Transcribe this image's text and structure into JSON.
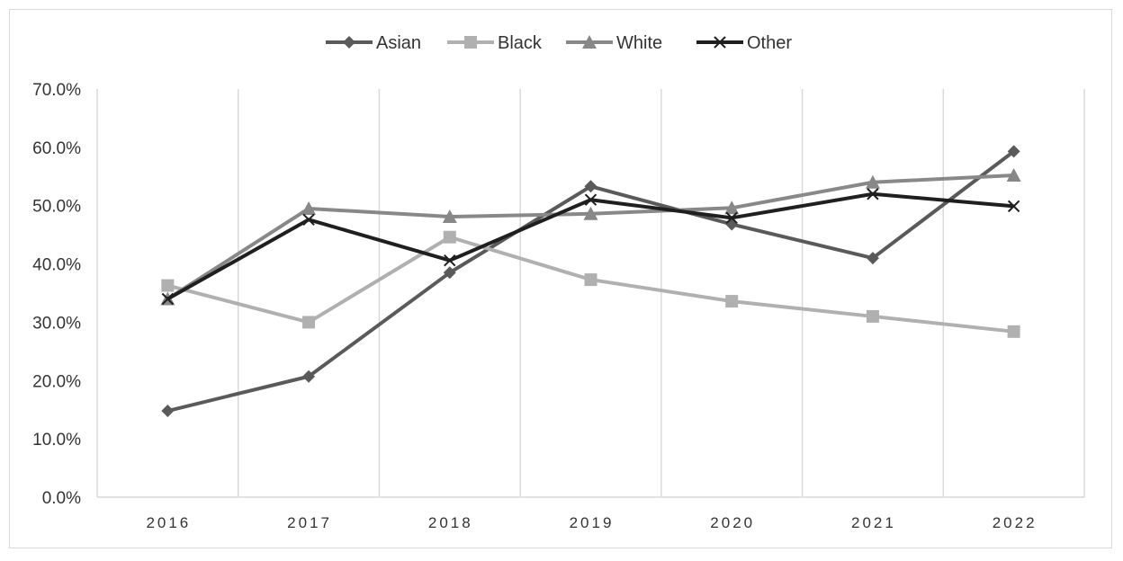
{
  "chart_data": {
    "type": "line",
    "title": "",
    "xlabel": "",
    "ylabel": "",
    "categories": [
      "2016",
      "2017",
      "2018",
      "2019",
      "2020",
      "2021",
      "2022"
    ],
    "ylim": [
      0,
      70
    ],
    "y_ticks": [
      "0.0%",
      "10.0%",
      "20.0%",
      "30.0%",
      "40.0%",
      "50.0%",
      "60.0%",
      "70.0%"
    ],
    "grid": "vertical",
    "legend_position": "top-center",
    "series": [
      {
        "name": "Asian",
        "marker": "diamond",
        "color": "#5a5a5a",
        "values": [
          14.8,
          20.7,
          38.5,
          53.3,
          46.8,
          41.0,
          59.3
        ]
      },
      {
        "name": "Black",
        "marker": "square",
        "color": "#b0b0b0",
        "values": [
          36.3,
          30.0,
          44.6,
          37.3,
          33.6,
          31.0,
          28.4
        ]
      },
      {
        "name": "White",
        "marker": "triangle",
        "color": "#888888",
        "values": [
          34.0,
          49.5,
          48.1,
          48.6,
          49.6,
          54.0,
          55.2
        ]
      },
      {
        "name": "Other",
        "marker": "x",
        "color": "#1f1f1f",
        "values": [
          34.0,
          47.6,
          40.6,
          51.0,
          47.9,
          52.0,
          49.9
        ]
      }
    ]
  }
}
